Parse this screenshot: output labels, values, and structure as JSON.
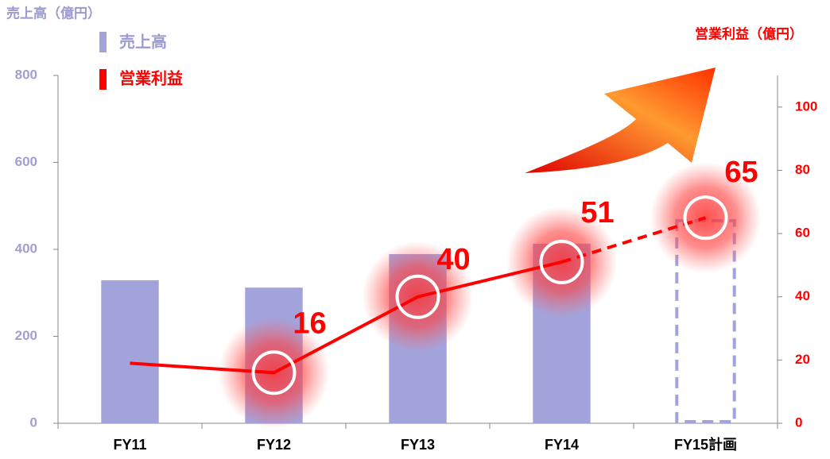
{
  "chart_data": {
    "type": "bar_line",
    "y_label": "売上高（億円）",
    "y2_label": "営業利益（億円）",
    "categories": [
      "FY11",
      "FY12",
      "FY13",
      "FY14",
      "FY15計画"
    ],
    "series": [
      {
        "name": "売上高",
        "color": "#a3a3dc",
        "type": "bar",
        "values": [
          329,
          312,
          389,
          413,
          466
        ],
        "dashed_last": true
      },
      {
        "name": "営業利益",
        "color": "#ff0000",
        "type": "line",
        "axis": "y2",
        "values": [
          19,
          16,
          40,
          51,
          65
        ],
        "value_labels": [
          null,
          "16",
          "40",
          "51",
          "65"
        ],
        "dashed_last": true
      }
    ],
    "ylim": [
      0,
      800
    ],
    "yticks": [
      0,
      200,
      400,
      600,
      800
    ],
    "y2lim": [
      0,
      110
    ],
    "y2ticks": [
      0,
      20,
      40,
      60,
      80,
      100
    ],
    "grid": false
  }
}
